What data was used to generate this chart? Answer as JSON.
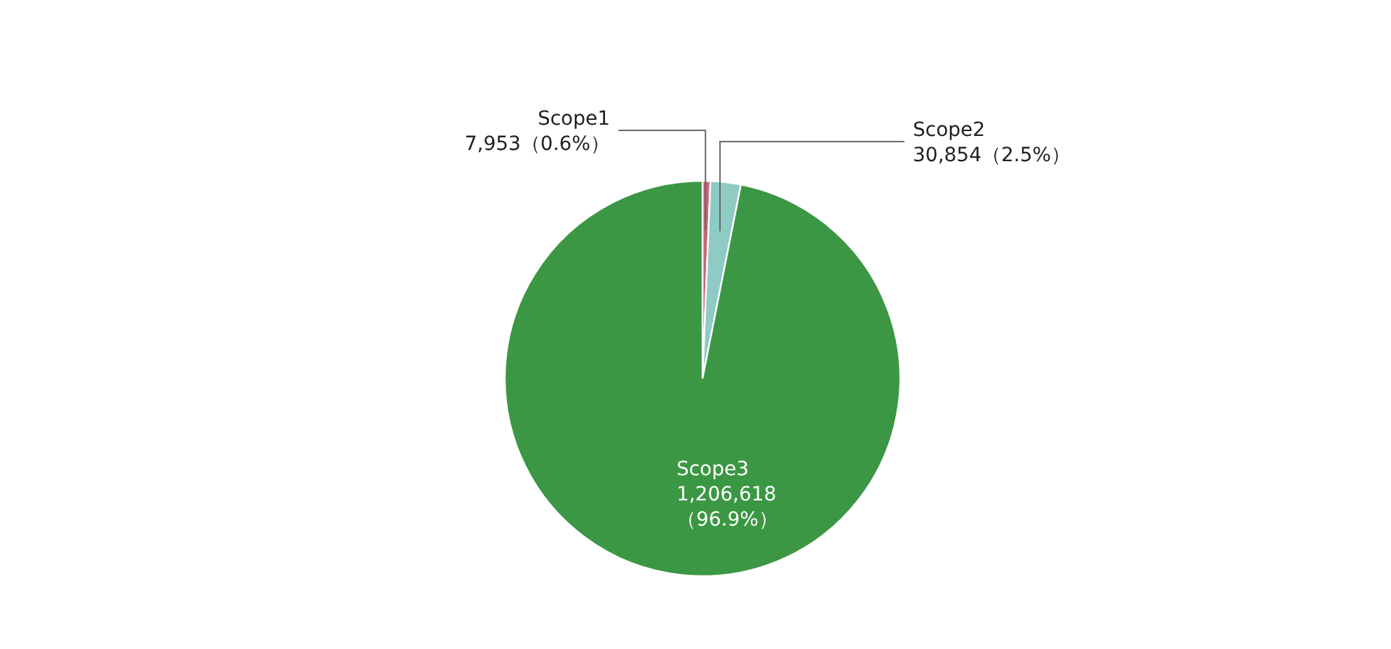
{
  "chart_data": {
    "type": "pie",
    "categories": [
      "Scope1",
      "Scope2",
      "Scope3"
    ],
    "values": [
      7953,
      30854,
      1206618
    ],
    "value_labels": [
      "7,953（0.6%）",
      "30,854（2.5%）",
      "1,206,618\n（96.9%）"
    ],
    "colors": [
      "#c8687a",
      "#8fcbc5",
      "#3b9743"
    ]
  }
}
